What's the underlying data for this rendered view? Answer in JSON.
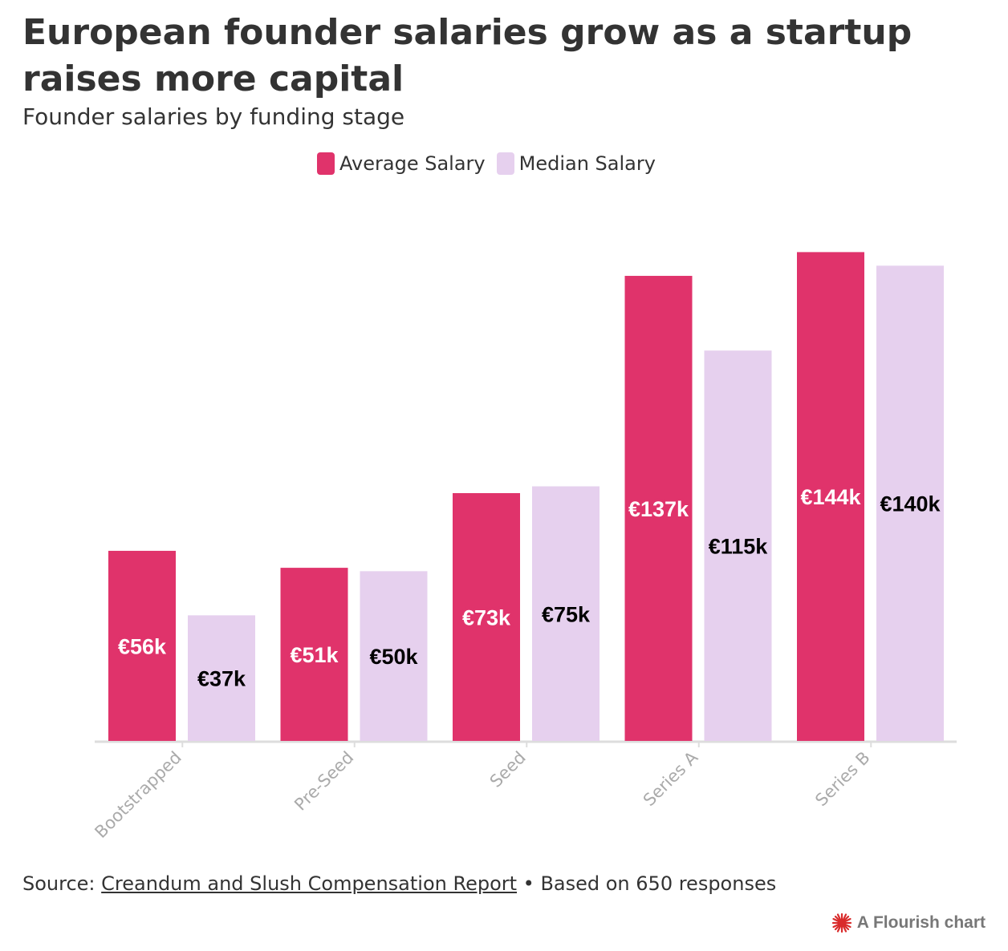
{
  "title": "European founder salaries grow as a startup raises more capital",
  "subtitle": "Founder salaries by funding stage",
  "source": {
    "prefix": "Source: ",
    "link_text": "Creandum and Slush Compensation Report",
    "suffix": " • Based on 650 responses"
  },
  "credit": "A Flourish chart",
  "colors": {
    "average": "#e0336b",
    "median": "#e6d0ee",
    "axis": "#dddddd",
    "tick_text": "#aaaaaa"
  },
  "chart_data": {
    "type": "bar",
    "title": "European founder salaries grow as a startup raises more capital",
    "subtitle": "Founder salaries by funding stage",
    "xlabel": "",
    "ylabel": "",
    "ylim": [
      0,
      150
    ],
    "grid": false,
    "legend_position": "top-center",
    "categories": [
      "Bootstrapped",
      "Pre-Seed",
      "Seed",
      "Series A",
      "Series B"
    ],
    "series": [
      {
        "name": "Average Salary",
        "values": [
          56,
          51,
          73,
          137,
          144
        ],
        "labels": [
          "€56k",
          "€51k",
          "€73k",
          "€137k",
          "€144k"
        ]
      },
      {
        "name": "Median Salary",
        "values": [
          37,
          50,
          75,
          115,
          140
        ],
        "labels": [
          "€37k",
          "€50k",
          "€75k",
          "€115k",
          "€140k"
        ]
      }
    ]
  }
}
